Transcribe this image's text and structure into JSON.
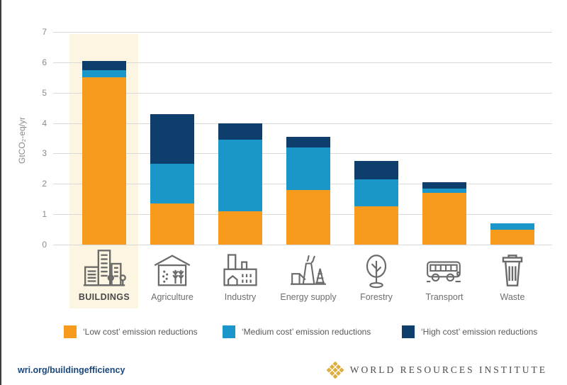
{
  "chart_data": {
    "type": "bar",
    "stacked": true,
    "title": "",
    "ylabel": "GtCO₂-eq/yr",
    "xlabel": "",
    "ylim": [
      0,
      7
    ],
    "yticks": [
      0,
      1,
      2,
      3,
      4,
      5,
      6,
      7
    ],
    "grid": true,
    "legend_position": "bottom",
    "categories": [
      "BUILDINGS",
      "Agriculture",
      "Industry",
      "Energy supply",
      "Forestry",
      "Transport",
      "Waste"
    ],
    "category_icons": [
      "buildings-icon",
      "agriculture-icon",
      "industry-icon",
      "energy-supply-icon",
      "forestry-icon",
      "transport-icon",
      "waste-icon"
    ],
    "highlighted_category": "BUILDINGS",
    "highlight_color": "#FBF5E2",
    "series": [
      {
        "name": "‘Low cost’ emission reductions",
        "color": "#F79B1F",
        "values": [
          5.5,
          1.35,
          1.1,
          1.8,
          1.25,
          1.7,
          0.5
        ]
      },
      {
        "name": "‘Medium cost’ emission reductions",
        "color": "#1B96C8",
        "values": [
          0.25,
          1.3,
          2.35,
          1.4,
          0.9,
          0.15,
          0.2
        ]
      },
      {
        "name": "‘High cost’ emission reductions",
        "color": "#0E3E6C",
        "values": [
          0.3,
          1.65,
          0.55,
          0.35,
          0.6,
          0.2,
          0
        ]
      }
    ],
    "totals": [
      6.05,
      4.3,
      4.0,
      3.55,
      2.75,
      2.05,
      0.7
    ]
  },
  "footer": {
    "link": "wri.org/buildingefficiency",
    "brand": "WORLD RESOURCES INSTITUTE"
  }
}
